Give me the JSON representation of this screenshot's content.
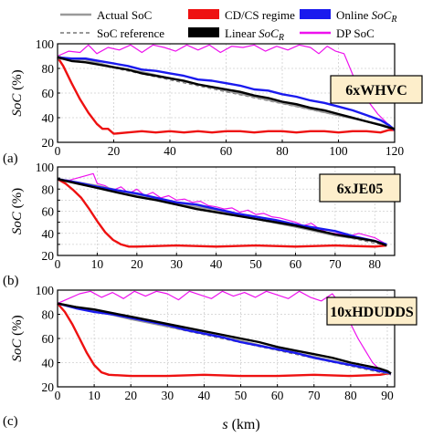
{
  "legend": [
    {
      "key": "actual",
      "label": "Actual SoC",
      "color": "#9a9a9a",
      "dash": ""
    },
    {
      "key": "cdcs",
      "label": "CD/CS regime",
      "color": "#ee1111",
      "swatch": true
    },
    {
      "key": "online",
      "label_parts": [
        "Online ",
        "SoC",
        "R"
      ],
      "color": "#1a1aee",
      "swatch": true
    },
    {
      "key": "reference",
      "label": "SoC reference",
      "color": "#777777",
      "dash": "4,3"
    },
    {
      "key": "linear",
      "label_parts": [
        "Linear ",
        "SoC",
        "R"
      ],
      "color": "#000000",
      "swatch": true
    },
    {
      "key": "dp",
      "label": "DP SoC",
      "color": "#ee11ee",
      "dash": ""
    }
  ],
  "y_axis_label_parts": [
    "SoC",
    " (%)"
  ],
  "x_axis_label_parts": [
    "s",
    " (km)"
  ],
  "chart_data": [
    {
      "type": "line",
      "panel_label": "(a)",
      "cycle_tag": "6xWHVC",
      "xlim": [
        0,
        120
      ],
      "ylim": [
        20,
        100
      ],
      "xticks": [
        0,
        20,
        40,
        60,
        80,
        100,
        120
      ],
      "yticks": [
        20,
        40,
        60,
        80,
        100
      ],
      "grid": true,
      "series": [
        {
          "key": "dp",
          "color": "#ee11ee",
          "x": [
            0,
            4,
            8,
            11,
            14,
            18,
            22,
            26,
            30,
            34,
            38,
            42,
            46,
            50,
            54,
            58,
            62,
            66,
            70,
            74,
            78,
            82,
            86,
            90,
            93,
            96,
            99,
            102,
            106,
            110,
            114,
            118,
            120
          ],
          "y": [
            90,
            94,
            93,
            99,
            92,
            97,
            95,
            99,
            93,
            99,
            97,
            94,
            99,
            95,
            99,
            93,
            98,
            97,
            99,
            94,
            98,
            95,
            99,
            97,
            92,
            98,
            94,
            92,
            70,
            55,
            43,
            34,
            30
          ]
        },
        {
          "key": "cdcs",
          "color": "#ee1111",
          "x": [
            0,
            2,
            5,
            8,
            11,
            14,
            16,
            18,
            20,
            25,
            30,
            35,
            40,
            45,
            50,
            55,
            60,
            65,
            70,
            75,
            80,
            85,
            90,
            95,
            100,
            105,
            110,
            115,
            118,
            120
          ],
          "y": [
            89,
            82,
            68,
            55,
            44,
            35,
            31,
            31,
            27,
            28,
            29,
            28,
            29,
            28,
            29,
            28,
            29,
            29,
            28,
            29,
            29,
            28,
            29,
            29,
            28,
            29,
            29,
            28,
            30,
            30
          ]
        },
        {
          "key": "reference",
          "color": "#777777",
          "x": [
            0,
            120
          ],
          "y": [
            90,
            32
          ]
        },
        {
          "key": "actual",
          "color": "#9a9a9a",
          "x": [
            0,
            10,
            20,
            30,
            40,
            50,
            60,
            70,
            80,
            90,
            100,
            110,
            118,
            120
          ],
          "y": [
            88,
            87,
            81,
            77,
            72,
            67,
            62,
            57,
            52,
            47,
            42,
            37,
            33,
            30
          ]
        },
        {
          "key": "online",
          "color": "#1a1aee",
          "x": [
            0,
            5,
            10,
            15,
            20,
            25,
            30,
            35,
            40,
            45,
            50,
            55,
            60,
            65,
            70,
            75,
            80,
            85,
            90,
            95,
            100,
            105,
            110,
            115,
            118,
            120
          ],
          "y": [
            89,
            88,
            88,
            86,
            84,
            82,
            79,
            78,
            76,
            74,
            71,
            70,
            68,
            66,
            63,
            62,
            59,
            57,
            54,
            52,
            49,
            46,
            42,
            38,
            34,
            30
          ]
        },
        {
          "key": "linear",
          "color": "#000000",
          "x": [
            0,
            5,
            10,
            15,
            20,
            25,
            30,
            35,
            40,
            45,
            50,
            55,
            60,
            65,
            70,
            75,
            80,
            85,
            90,
            95,
            100,
            105,
            110,
            115,
            118,
            120
          ],
          "y": [
            89,
            86,
            85,
            83,
            81,
            79,
            76,
            74,
            72,
            70,
            67,
            65,
            63,
            61,
            58,
            56,
            53,
            51,
            48,
            46,
            43,
            40,
            37,
            34,
            32,
            31
          ]
        }
      ]
    },
    {
      "type": "line",
      "panel_label": "(b)",
      "cycle_tag": "6xJE05",
      "xlim": [
        0,
        85
      ],
      "ylim": [
        20,
        100
      ],
      "xticks": [
        0,
        10,
        20,
        30,
        40,
        50,
        60,
        70,
        80
      ],
      "yticks": [
        20,
        30,
        40,
        50,
        60,
        70,
        80,
        90,
        100
      ],
      "grid": true,
      "series": [
        {
          "key": "dp",
          "color": "#ee11ee",
          "x": [
            0,
            3,
            6,
            9,
            10,
            12,
            14,
            16,
            18,
            20,
            22,
            24,
            26,
            28,
            30,
            32,
            34,
            36,
            38,
            40,
            42,
            44,
            46,
            48,
            50,
            52,
            54,
            56,
            58,
            60,
            62,
            64,
            66,
            68,
            70,
            72,
            74,
            76,
            78,
            80,
            82,
            83
          ],
          "y": [
            89,
            88,
            91,
            94,
            85,
            83,
            79,
            82,
            76,
            80,
            74,
            77,
            72,
            74,
            70,
            71,
            68,
            69,
            65,
            64,
            62,
            63,
            59,
            61,
            57,
            58,
            55,
            54,
            52,
            50,
            47,
            49,
            44,
            41,
            40,
            39,
            38,
            40,
            38,
            36,
            32,
            30
          ]
        },
        {
          "key": "cdcs",
          "color": "#ee1111",
          "x": [
            0,
            2,
            4,
            6,
            8,
            10,
            12,
            14,
            16,
            18,
            20,
            30,
            40,
            50,
            60,
            70,
            80,
            83
          ],
          "y": [
            89,
            85,
            79,
            72,
            62,
            51,
            41,
            34,
            30,
            28,
            28,
            29,
            28,
            29,
            28,
            29,
            28,
            29
          ]
        },
        {
          "key": "reference",
          "color": "#777777",
          "x": [
            0,
            83
          ],
          "y": [
            89,
            29
          ]
        },
        {
          "key": "actual",
          "color": "#9a9a9a",
          "x": [
            0,
            10,
            20,
            30,
            40,
            50,
            60,
            70,
            80,
            83
          ],
          "y": [
            89,
            83,
            75,
            67,
            61,
            53,
            46,
            38,
            33,
            30
          ]
        },
        {
          "key": "online",
          "color": "#1a1aee",
          "x": [
            0,
            5,
            10,
            15,
            20,
            25,
            30,
            35,
            40,
            45,
            50,
            55,
            60,
            65,
            70,
            75,
            80,
            83
          ],
          "y": [
            89,
            86,
            82,
            79,
            76,
            72,
            68,
            66,
            62,
            58,
            55,
            52,
            48,
            45,
            42,
            37,
            33,
            30
          ]
        },
        {
          "key": "linear",
          "color": "#000000",
          "x": [
            0,
            5,
            10,
            15,
            20,
            25,
            30,
            35,
            40,
            45,
            50,
            55,
            60,
            65,
            70,
            75,
            80,
            83
          ],
          "y": [
            89,
            85,
            81,
            77,
            73,
            70,
            66,
            62,
            59,
            56,
            53,
            50,
            47,
            43,
            39,
            36,
            33,
            29
          ]
        }
      ]
    },
    {
      "type": "line",
      "panel_label": "(c)",
      "cycle_tag": "10xHDUDDS",
      "xlim": [
        0,
        92
      ],
      "ylim": [
        20,
        100
      ],
      "xticks": [
        0,
        10,
        20,
        30,
        40,
        50,
        60,
        70,
        80,
        90
      ],
      "yticks": [
        20,
        40,
        60,
        80,
        100
      ],
      "grid": true,
      "series": [
        {
          "key": "dp",
          "color": "#ee11ee",
          "x": [
            0,
            3,
            6,
            9,
            12,
            15,
            18,
            21,
            24,
            27,
            30,
            33,
            36,
            39,
            42,
            45,
            48,
            51,
            54,
            57,
            60,
            63,
            66,
            69,
            72,
            75,
            78,
            80,
            82,
            84,
            86,
            88,
            90,
            91
          ],
          "y": [
            89,
            93,
            97,
            99,
            94,
            98,
            93,
            99,
            95,
            99,
            97,
            92,
            99,
            96,
            93,
            99,
            95,
            98,
            94,
            99,
            96,
            93,
            99,
            94,
            91,
            97,
            85,
            72,
            60,
            50,
            40,
            34,
            31,
            30
          ]
        },
        {
          "key": "cdcs",
          "color": "#ee1111",
          "x": [
            0,
            2,
            4,
            6,
            8,
            10,
            12,
            14,
            20,
            30,
            40,
            50,
            60,
            70,
            80,
            88,
            90,
            91
          ],
          "y": [
            89,
            82,
            72,
            60,
            48,
            38,
            32,
            30,
            29,
            29,
            30,
            29,
            29,
            30,
            29,
            30,
            31,
            31
          ]
        },
        {
          "key": "reference",
          "color": "#777777",
          "x": [
            0,
            91
          ],
          "y": [
            89,
            30
          ]
        },
        {
          "key": "actual",
          "color": "#9a9a9a",
          "x": [
            0,
            10,
            20,
            30,
            40,
            50,
            60,
            70,
            80,
            91
          ],
          "y": [
            89,
            83,
            76,
            70,
            64,
            58,
            51,
            45,
            38,
            31
          ]
        },
        {
          "key": "online",
          "color": "#1a1aee",
          "x": [
            0,
            5,
            10,
            15,
            20,
            25,
            30,
            35,
            40,
            45,
            50,
            55,
            60,
            65,
            70,
            75,
            80,
            85,
            88,
            90,
            91
          ],
          "y": [
            89,
            85,
            82,
            80,
            77,
            74,
            71,
            67,
            64,
            61,
            57,
            54,
            51,
            48,
            44,
            41,
            38,
            35,
            33,
            32,
            31
          ]
        },
        {
          "key": "linear",
          "color": "#000000",
          "x": [
            0,
            5,
            10,
            15,
            20,
            25,
            30,
            35,
            40,
            45,
            50,
            55,
            60,
            65,
            70,
            75,
            80,
            85,
            88,
            90,
            91
          ],
          "y": [
            89,
            86,
            84,
            81,
            78,
            75,
            72,
            69,
            66,
            63,
            60,
            57,
            53,
            50,
            47,
            44,
            40,
            37,
            35,
            33,
            31
          ]
        }
      ]
    }
  ]
}
